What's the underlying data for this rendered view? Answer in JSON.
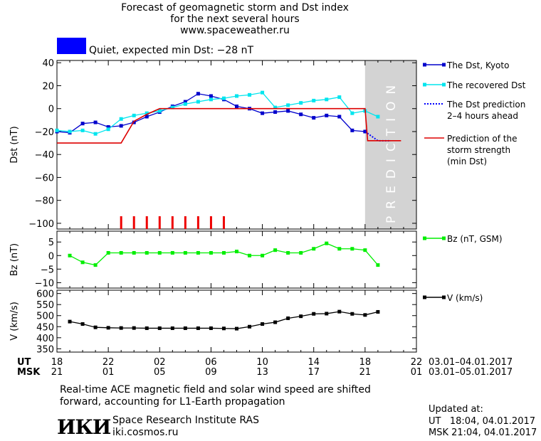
{
  "header": {
    "title_lines": [
      "Forecast of geomagnetic storm and Dst index",
      "for the next several hours",
      "www.spaceweather.ru"
    ],
    "status_color": "#0000ff",
    "status_text": "Quiet, expected min Dst: −28 nT"
  },
  "chart_data": [
    {
      "type": "line",
      "panel": "dst",
      "ylabel": "Dst (nT)",
      "ylim": [
        -105,
        42
      ],
      "yticks": [
        40,
        20,
        0,
        -20,
        -40,
        -60,
        -80,
        -100
      ],
      "xlim": [
        18,
        46
      ],
      "prediction_zone": {
        "x_start": 42,
        "x_end": 46,
        "label": "PREDICTION"
      },
      "series": [
        {
          "name": "The Dst, Kyoto",
          "color": "#0000cc",
          "x": [
            18,
            19,
            20,
            21,
            22,
            23,
            24,
            25,
            26,
            27,
            28,
            29,
            30,
            31,
            32,
            33,
            34,
            35,
            36,
            37,
            38,
            39,
            40,
            41,
            42
          ],
          "y": [
            -20,
            -21,
            -13,
            -12,
            -16,
            -15,
            -12,
            -7,
            -3,
            2,
            6,
            13,
            11,
            8,
            2,
            0,
            -4,
            -3,
            -2,
            -5,
            -8,
            -6,
            -7,
            -19,
            -20
          ]
        },
        {
          "name": "The recovered Dst",
          "color": "#00e5ee",
          "x": [
            18,
            19,
            20,
            21,
            22,
            23,
            24,
            25,
            26,
            27,
            28,
            29,
            30,
            31,
            32,
            33,
            34,
            35,
            36,
            37,
            38,
            39,
            40,
            41,
            42,
            43
          ],
          "y": [
            -19,
            -20,
            -19,
            -22,
            -18,
            -9,
            -6,
            -4,
            -2,
            1,
            4,
            6,
            8,
            9,
            11,
            12,
            14,
            1,
            3,
            5,
            7,
            8,
            10,
            -4,
            -2,
            -7
          ]
        },
        {
          "name": "The Dst prediction\n2–4 hours ahead",
          "color": "#0000ff",
          "x": [
            42,
            43,
            44
          ],
          "y": [
            -20,
            -28,
            -28
          ]
        },
        {
          "name": "Prediction of the\nstorm strength\n(min Dst)",
          "color": "#dd0000",
          "x": [
            18,
            23,
            24,
            25,
            26,
            42,
            42.2,
            44.8
          ],
          "y": [
            -30,
            -30,
            -11,
            -5,
            0,
            0,
            -28,
            -28
          ]
        }
      ],
      "storm_marks_x": [
        23,
        24,
        25,
        26,
        27,
        28,
        29,
        30,
        31
      ]
    },
    {
      "type": "line",
      "panel": "bz",
      "ylabel": "Bz (nT)",
      "ylim": [
        -12,
        9
      ],
      "yticks": [
        5,
        0,
        -5,
        -10
      ],
      "series": [
        {
          "name": "Bz (nT, GSM)",
          "color": "#00ee00",
          "x": [
            19,
            20,
            21,
            22,
            23,
            24,
            25,
            26,
            27,
            28,
            29,
            30,
            31,
            32,
            33,
            34,
            35,
            36,
            37,
            38,
            39,
            40,
            41,
            42,
            43
          ],
          "y": [
            0,
            -2.5,
            -3.5,
            1,
            1,
            1,
            1,
            1,
            1,
            1,
            1,
            1,
            1,
            1.5,
            0,
            0,
            2,
            1,
            1,
            2.5,
            4.5,
            2.5,
            2.5,
            2,
            -3.5
          ]
        }
      ]
    },
    {
      "type": "line",
      "panel": "v",
      "ylabel": "V (km/s)",
      "ylim": [
        335,
        615
      ],
      "yticks": [
        600,
        550,
        500,
        450,
        400,
        350
      ],
      "series": [
        {
          "name": "V (km/s)",
          "color": "#000000",
          "x": [
            19,
            20,
            21,
            22,
            23,
            24,
            25,
            26,
            27,
            28,
            29,
            30,
            31,
            32,
            33,
            34,
            35,
            36,
            37,
            38,
            39,
            40,
            41,
            42,
            43
          ],
          "y": [
            473,
            462,
            447,
            445,
            444,
            444,
            443,
            443,
            443,
            443,
            443,
            443,
            442,
            441,
            450,
            462,
            470,
            488,
            497,
            508,
            509,
            518,
            508,
            503,
            517
          ]
        }
      ]
    }
  ],
  "x_axis": {
    "ut_label": "UT",
    "msk_label": "MSK",
    "ut_ticks": [
      "18",
      "22",
      "02",
      "06",
      "10",
      "14",
      "18",
      "22"
    ],
    "msk_ticks": [
      "21",
      "01",
      "05",
      "09",
      "13",
      "17",
      "21",
      "01"
    ],
    "ut_dates": "03.01–04.01.2017",
    "msk_dates": "03.01–05.01.2017"
  },
  "footer": {
    "note_line1": "Real-time ACE magnetic field and solar wind speed are shifted",
    "note_line2": "forward, accounting for L1-Earth propagation",
    "logo_text": "ИКИ",
    "institute": "Space Research Institute RAS",
    "site": "iki.cosmos.ru",
    "updated_label": "Updated at:",
    "updated_ut": "UT   18:04, 04.01.2017",
    "updated_msk": "MSK 21:04, 04.01.2017"
  }
}
